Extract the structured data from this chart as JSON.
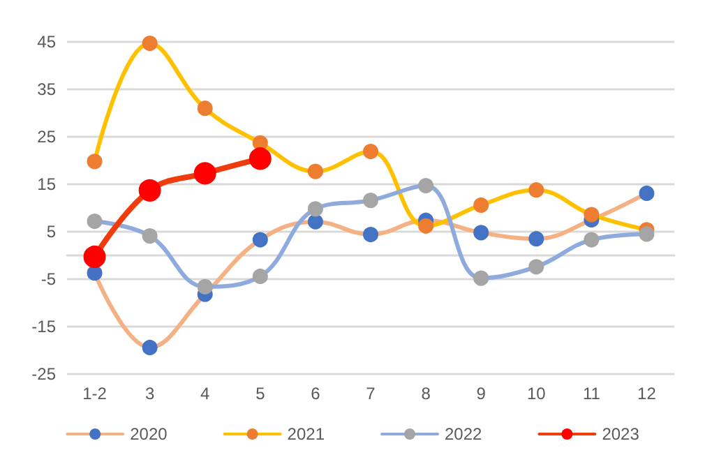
{
  "chart_data": {
    "type": "line",
    "categories": [
      "1-2",
      "3",
      "4",
      "5",
      "6",
      "7",
      "8",
      "9",
      "10",
      "11",
      "12"
    ],
    "series": [
      {
        "name": "2020",
        "color": "#f4b183",
        "colors": [
          "#4472c4",
          "#4472c4",
          "#4472c4",
          "#4472c4",
          "#4472c4",
          "#4472c4",
          "#4472c4",
          "#4472c4",
          "#4472c4",
          "#4472c4",
          "#4472c4"
        ],
        "values": [
          -3.7,
          -19.4,
          -8.2,
          3.3,
          7.1,
          4.4,
          7.4,
          4.8,
          3.5,
          7.5,
          13.1
        ]
      },
      {
        "name": "2021",
        "color": "#ffc000",
        "colors": [
          "#ed7d31",
          "#ed7d31",
          "#ed7d31",
          "#ed7d31",
          "#ed7d31",
          "#ed7d31",
          "#ed7d31",
          "#ed7d31",
          "#ed7d31",
          "#ed7d31",
          "#ed7d31"
        ],
        "values": [
          19.8,
          44.7,
          31,
          23.7,
          17.7,
          21.9,
          6.2,
          10.6,
          13.8,
          8.6,
          5.4
        ]
      },
      {
        "name": "2022",
        "color": "#8faadc",
        "colors": [
          "#a5a5a5",
          "#a5a5a5",
          "#a5a5a5",
          "#a5a5a5",
          "#a5a5a5",
          "#a5a5a5",
          "#a5a5a5",
          "#a5a5a5",
          "#a5a5a5",
          "#a5a5a5",
          "#a5a5a5"
        ],
        "values": [
          7.2,
          4.1,
          -6.6,
          -4.4,
          9.8,
          11.6,
          14.7,
          -4.8,
          -2.4,
          3.3,
          4.5
        ]
      },
      {
        "name": "2023",
        "color": "#f03c0c",
        "colors": [
          "#ff0000",
          "#ff0000",
          "#ff0000",
          "#ff0000",
          null,
          null,
          null,
          null,
          null,
          null,
          null
        ],
        "values": [
          -0.3,
          13.7,
          17.3,
          20.4,
          null,
          null,
          null,
          null,
          null,
          null,
          null
        ]
      }
    ],
    "ylim": [
      -25,
      45
    ],
    "yticks": [
      -25,
      -15,
      -5,
      5,
      15,
      25,
      35,
      45
    ],
    "grid": "y",
    "legend": "bottom",
    "marker": "circle",
    "line_style": "solid"
  }
}
